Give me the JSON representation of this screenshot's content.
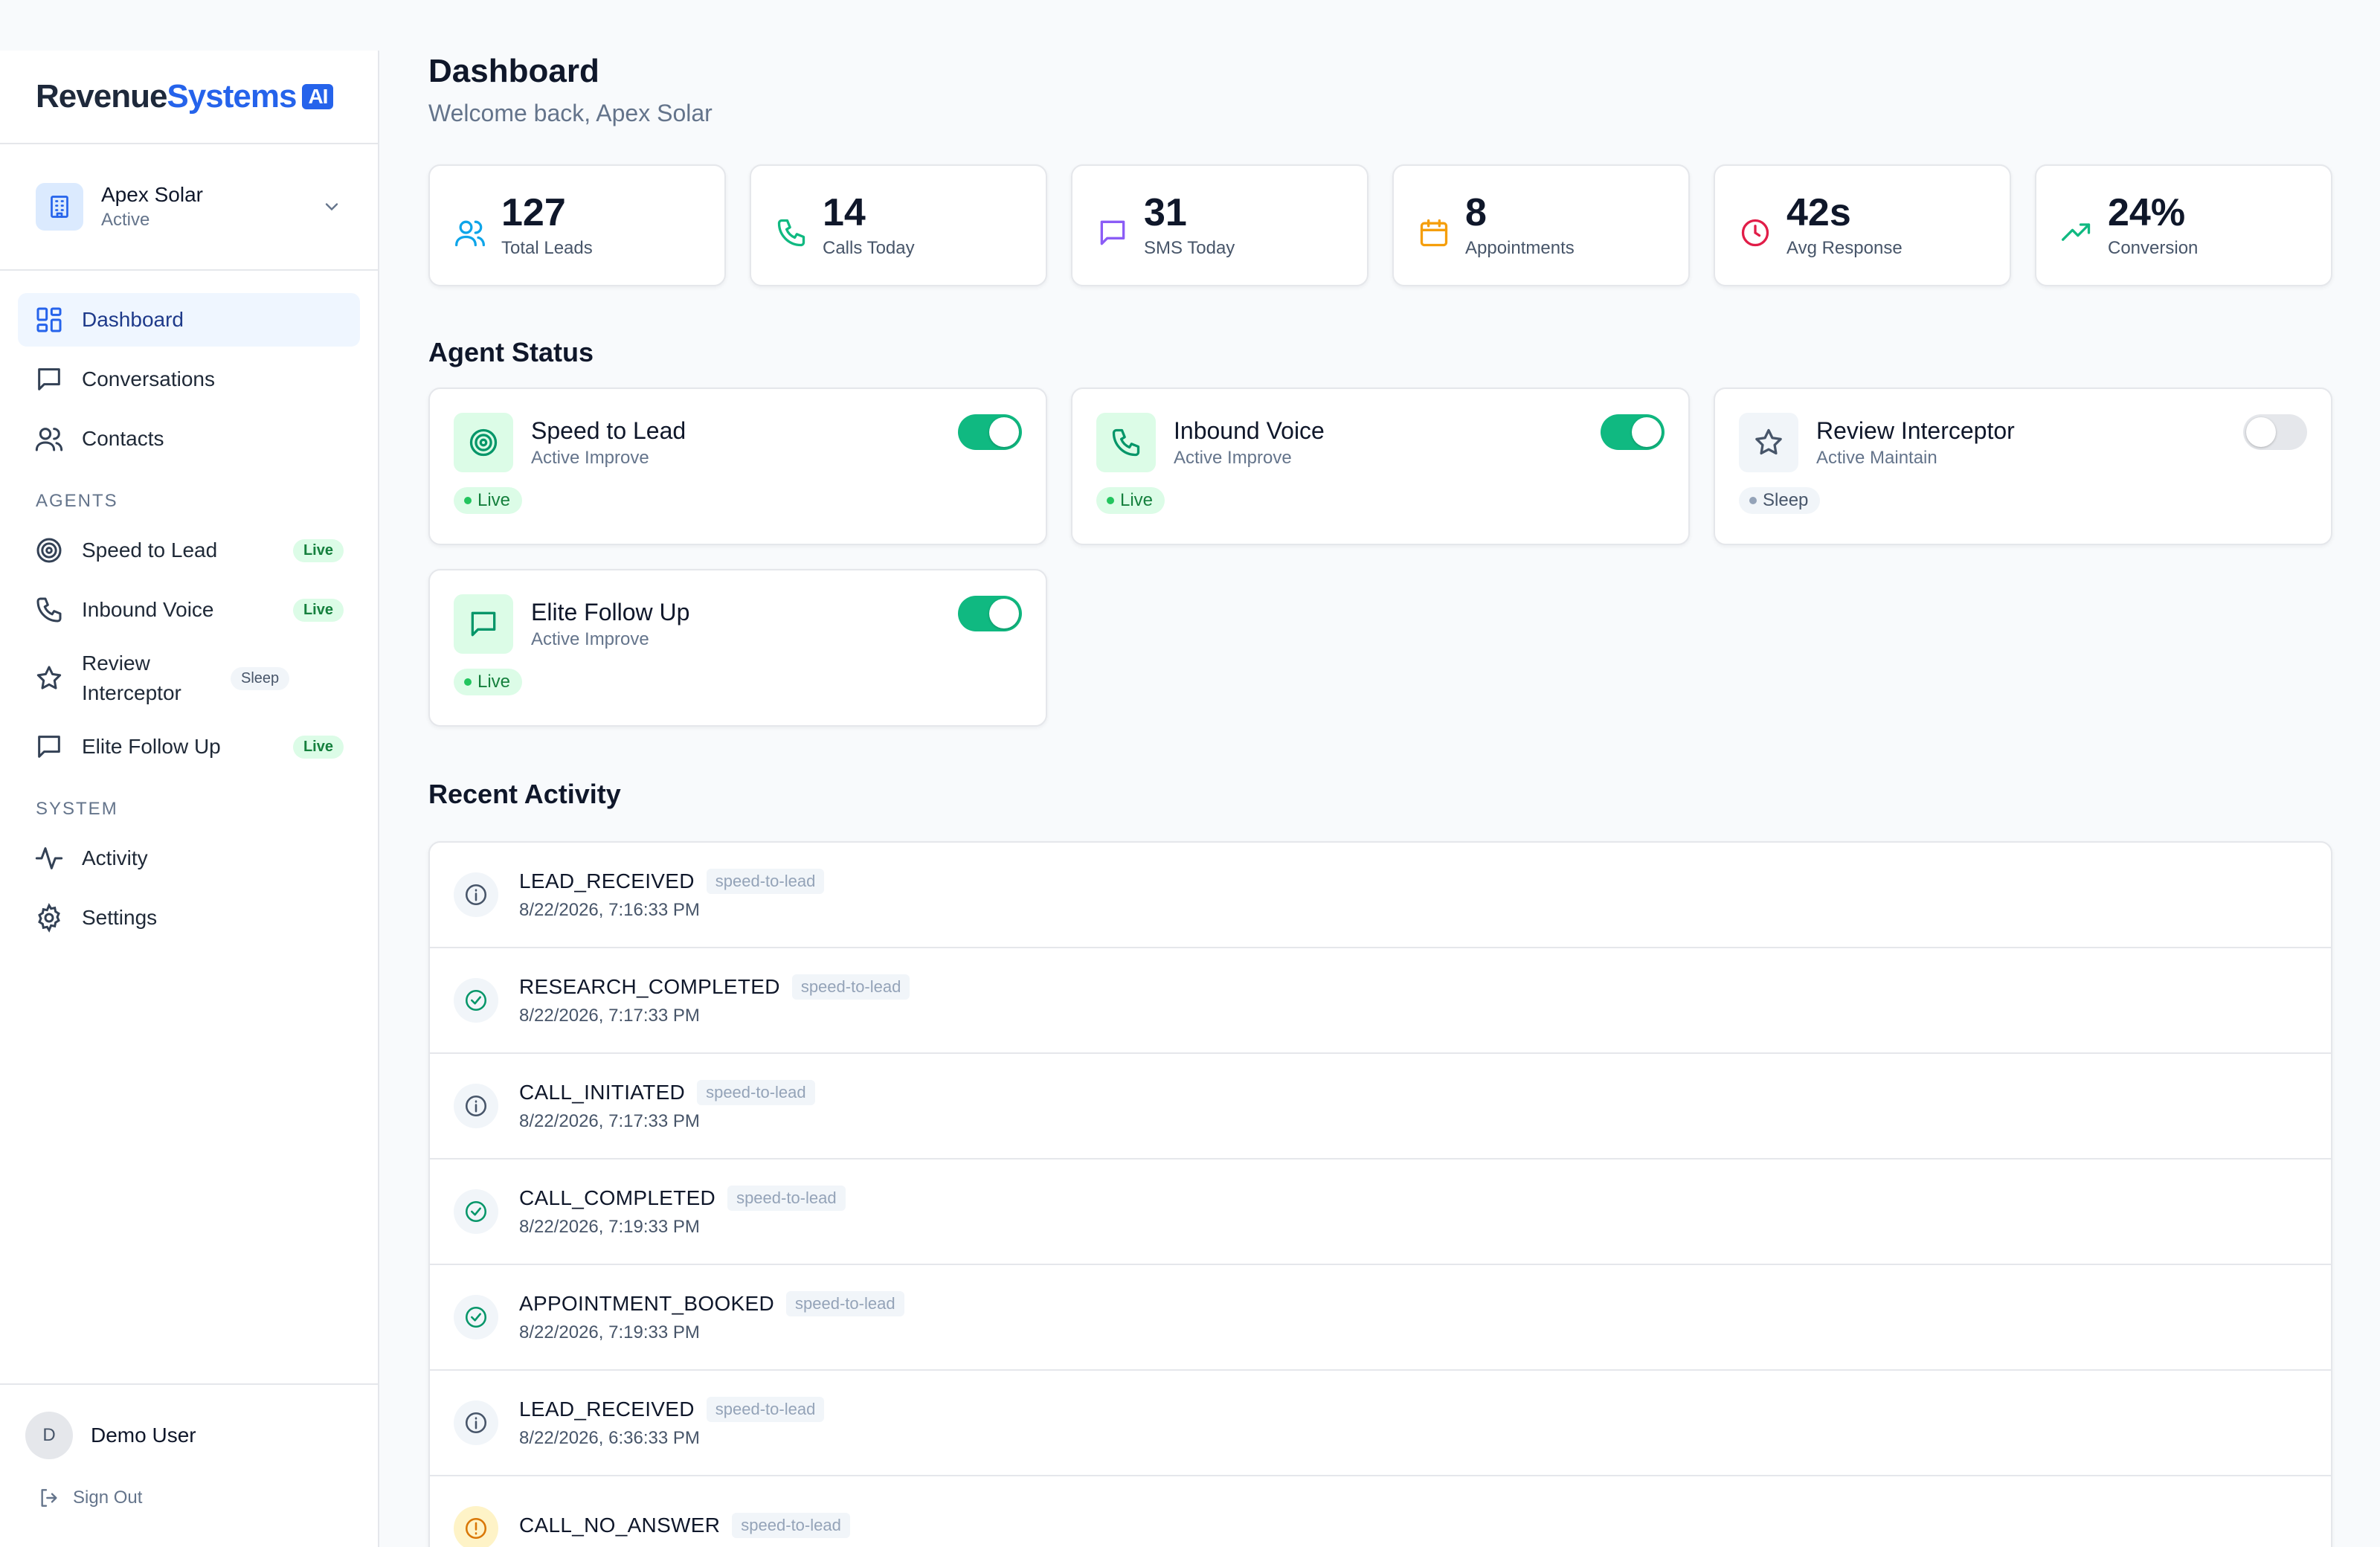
{
  "brand": {
    "part1": "Revenue",
    "part2": "Systems",
    "badge": "AI"
  },
  "org": {
    "name": "Apex Solar",
    "status": "Active"
  },
  "nav": {
    "main": [
      {
        "label": "Dashboard"
      },
      {
        "label": "Conversations"
      },
      {
        "label": "Contacts"
      }
    ],
    "agents_heading": "AGENTS",
    "agents": [
      {
        "label": "Speed to Lead",
        "status": "Live"
      },
      {
        "label": "Inbound Voice",
        "status": "Live"
      },
      {
        "label": "Review Interceptor",
        "status": "Sleep"
      },
      {
        "label": "Elite Follow Up",
        "status": "Live"
      }
    ],
    "system_heading": "SYSTEM",
    "system": [
      {
        "label": "Activity"
      },
      {
        "label": "Settings"
      }
    ]
  },
  "user": {
    "initial": "D",
    "name": "Demo User",
    "sign_out": "Sign Out"
  },
  "header": {
    "title": "Dashboard",
    "subtitle": "Welcome back, Apex Solar"
  },
  "stats": [
    {
      "value": "127",
      "label": "Total Leads",
      "icon": "users-icon",
      "color": "#0ea5e9"
    },
    {
      "value": "14",
      "label": "Calls Today",
      "icon": "phone-icon",
      "color": "#10b981"
    },
    {
      "value": "31",
      "label": "SMS Today",
      "icon": "message-icon",
      "color": "#8b5cf6"
    },
    {
      "value": "8",
      "label": "Appointments",
      "icon": "calendar-icon",
      "color": "#f59e0b"
    },
    {
      "value": "42s",
      "label": "Avg Response",
      "icon": "clock-icon",
      "color": "#e11d48"
    },
    {
      "value": "24%",
      "label": "Conversion",
      "icon": "trending-up-icon",
      "color": "#10b981"
    }
  ],
  "agent_status": {
    "heading": "Agent Status",
    "agents": [
      {
        "name": "Speed to Lead",
        "mode": "Active Improve",
        "status": "Live",
        "enabled": true
      },
      {
        "name": "Inbound Voice",
        "mode": "Active Improve",
        "status": "Live",
        "enabled": true
      },
      {
        "name": "Review Interceptor",
        "mode": "Active Maintain",
        "status": "Sleep",
        "enabled": false
      },
      {
        "name": "Elite Follow Up",
        "mode": "Active Improve",
        "status": "Live",
        "enabled": true
      }
    ]
  },
  "recent_activity": {
    "heading": "Recent Activity",
    "items": [
      {
        "type": "LEAD_RECEIVED",
        "tag": "speed-to-lead",
        "time": "8/22/2026, 7:16:33 PM",
        "icon": "info-icon"
      },
      {
        "type": "RESEARCH_COMPLETED",
        "tag": "speed-to-lead",
        "time": "8/22/2026, 7:17:33 PM",
        "icon": "check-circle-icon"
      },
      {
        "type": "CALL_INITIATED",
        "tag": "speed-to-lead",
        "time": "8/22/2026, 7:17:33 PM",
        "icon": "info-icon"
      },
      {
        "type": "CALL_COMPLETED",
        "tag": "speed-to-lead",
        "time": "8/22/2026, 7:19:33 PM",
        "icon": "check-circle-icon"
      },
      {
        "type": "APPOINTMENT_BOOKED",
        "tag": "speed-to-lead",
        "time": "8/22/2026, 7:19:33 PM",
        "icon": "check-circle-icon"
      },
      {
        "type": "LEAD_RECEIVED",
        "tag": "speed-to-lead",
        "time": "8/22/2026, 6:36:33 PM",
        "icon": "info-icon"
      },
      {
        "type": "CALL_NO_ANSWER",
        "tag": "speed-to-lead",
        "time": "",
        "icon": "warning-icon"
      }
    ]
  },
  "colors": {
    "primary": "#2563eb",
    "success": "#10b981",
    "live_bg": "#dcfce7",
    "live_text": "#15803d"
  }
}
